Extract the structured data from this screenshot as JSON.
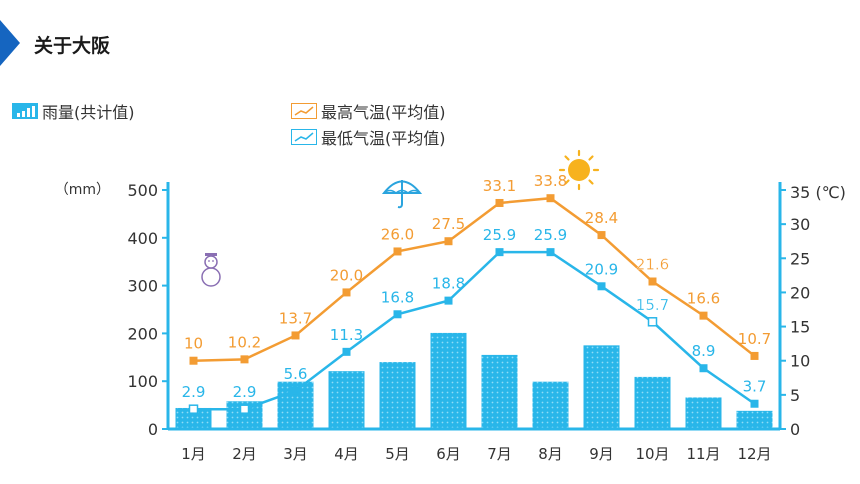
{
  "title": "关于大阪",
  "legend": {
    "rain": "雨量(共计值)",
    "high": "最高气温(平均值)",
    "low": "最低气温(平均值)"
  },
  "icons": [
    "snowman-icon",
    "umbrella-icon",
    "sun-icon"
  ],
  "colors": {
    "bar": "#29b6e9",
    "high": "#f39c33",
    "low": "#29b6e9",
    "title_accent": "#1565c0"
  },
  "chart_data": {
    "type": "bar",
    "categories": [
      "1月",
      "2月",
      "3月",
      "4月",
      "5月",
      "6月",
      "7月",
      "8月",
      "9月",
      "10月",
      "11月",
      "12月"
    ],
    "left_unit": "（mm）",
    "right_unit": "35 (℃)",
    "left_ticks": [
      "0",
      "100",
      "200",
      "300",
      "400",
      "500"
    ],
    "right_ticks": [
      "0",
      "5",
      "10",
      "15",
      "20",
      "25",
      "30"
    ],
    "ylim_left": [
      0,
      500
    ],
    "ylim_right": [
      0,
      35
    ],
    "series": [
      {
        "name": "雨量(共计值)",
        "type": "bar",
        "axis": "left",
        "values": [
          44,
          58,
          99,
          121,
          140,
          201,
          155,
          99,
          175,
          109,
          66,
          38
        ]
      },
      {
        "name": "最高气温(平均值)",
        "type": "line",
        "axis": "right",
        "values": [
          10,
          10.2,
          13.7,
          20.0,
          26.0,
          27.5,
          33.1,
          33.8,
          28.4,
          21.6,
          16.6,
          10.7
        ],
        "labels": [
          "10",
          "10.2",
          "13.7",
          "20.0",
          "26.0",
          "27.5",
          "33.1",
          "33.8",
          "28.4",
          "21.6",
          "16.6",
          "10.7"
        ]
      },
      {
        "name": "最低气温(平均值)",
        "type": "line",
        "axis": "right",
        "values": [
          2.9,
          2.9,
          5.6,
          11.3,
          16.8,
          18.8,
          25.9,
          25.9,
          20.9,
          15.7,
          8.9,
          3.7
        ],
        "labels": [
          "2.9",
          "2.9",
          "5.6",
          "11.3",
          "16.8",
          "18.8",
          "25.9",
          "25.9",
          "20.9",
          "15.7",
          "8.9",
          "3.7"
        ]
      }
    ]
  }
}
